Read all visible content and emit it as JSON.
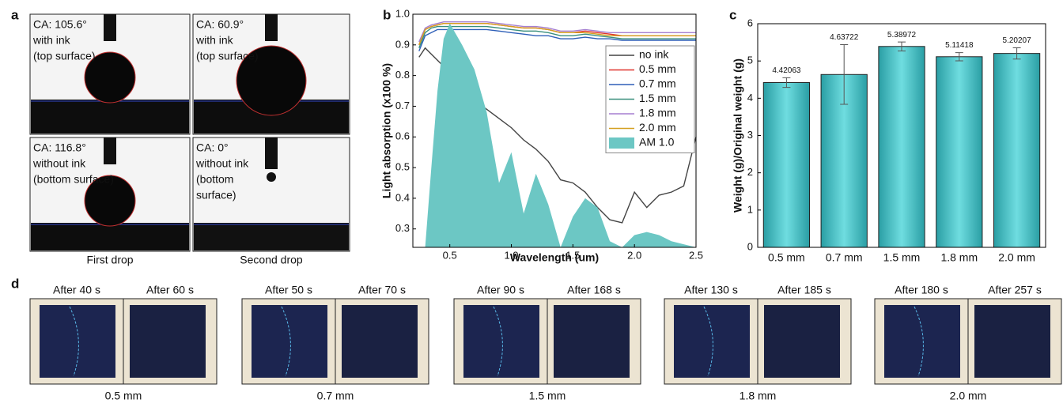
{
  "panels": {
    "a": {
      "letter": "a",
      "images": [
        {
          "lines": [
            "CA: 105.6°",
            "with ink",
            "(top surface)"
          ]
        },
        {
          "lines": [
            "CA: 60.9°",
            "with ink",
            "(top surface)"
          ]
        },
        {
          "lines": [
            "CA: 116.8°",
            "without ink",
            "(bottom surface)"
          ]
        },
        {
          "lines": [
            "CA: 0°",
            "without ink",
            "(bottom",
            "surface)"
          ]
        }
      ],
      "captions": [
        "First drop",
        "Second drop"
      ]
    },
    "d": {
      "letter": "d",
      "groups": [
        {
          "before": "After 40 s",
          "after": "After 60 s",
          "label": "0.5 mm"
        },
        {
          "before": "After 50 s",
          "after": "After 70 s",
          "label": "0.7 mm"
        },
        {
          "before": "After 90 s",
          "after": "After 168 s",
          "label": "1.5 mm"
        },
        {
          "before": "After 130 s",
          "after": "After 185 s",
          "label": "1.8 mm"
        },
        {
          "before": "After 180 s",
          "after": "After 257 s",
          "label": "2.0 mm"
        }
      ]
    }
  },
  "chart_data": [
    {
      "type": "line",
      "panel": "b",
      "xlabel": "Wavelength (um)",
      "ylabel": "Light absorption (x100 %)",
      "x": [
        0.25,
        0.3,
        0.35,
        0.4,
        0.45,
        0.5,
        0.6,
        0.7,
        0.8,
        0.9,
        1.0,
        1.1,
        1.2,
        1.3,
        1.4,
        1.5,
        1.6,
        1.7,
        1.8,
        1.9,
        2.0,
        2.1,
        2.2,
        2.3,
        2.4,
        2.5
      ],
      "xlim": [
        0.2,
        2.5
      ],
      "ylim": [
        0.24,
        1.0
      ],
      "xticks": [
        0.5,
        {
          "value": 1,
          "label": "1.0"
        },
        1.5,
        {
          "value": 2,
          "label": "2.0"
        },
        2.5
      ],
      "yticks": [
        0.3,
        0.4,
        0.5,
        0.6,
        0.7,
        0.8,
        0.9,
        {
          "value": 1,
          "label": "1.0"
        }
      ],
      "series": [
        {
          "name": "no ink",
          "color": "#444444",
          "values": [
            0.86,
            0.89,
            0.87,
            0.85,
            0.83,
            0.8,
            0.75,
            0.72,
            0.69,
            0.66,
            0.63,
            0.59,
            0.56,
            0.52,
            0.46,
            0.45,
            0.42,
            0.37,
            0.33,
            0.32,
            0.42,
            0.37,
            0.41,
            0.42,
            0.44,
            0.6
          ]
        },
        {
          "name": "0.5 mm",
          "color": "#e0322b",
          "values": [
            0.9,
            0.95,
            0.96,
            0.965,
            0.97,
            0.97,
            0.97,
            0.97,
            0.97,
            0.965,
            0.96,
            0.955,
            0.955,
            0.95,
            0.94,
            0.94,
            0.945,
            0.94,
            0.935,
            0.93,
            0.93,
            0.93,
            0.93,
            0.93,
            0.93,
            0.93
          ]
        },
        {
          "name": "0.7 mm",
          "color": "#2e5fb8",
          "values": [
            0.88,
            0.93,
            0.94,
            0.95,
            0.95,
            0.95,
            0.95,
            0.95,
            0.95,
            0.945,
            0.94,
            0.935,
            0.93,
            0.93,
            0.92,
            0.92,
            0.925,
            0.92,
            0.92,
            0.915,
            0.915,
            0.915,
            0.915,
            0.915,
            0.915,
            0.915
          ]
        },
        {
          "name": "1.5 mm",
          "color": "#3a8f7d",
          "values": [
            0.89,
            0.94,
            0.955,
            0.96,
            0.96,
            0.96,
            0.96,
            0.96,
            0.96,
            0.955,
            0.95,
            0.945,
            0.945,
            0.94,
            0.93,
            0.93,
            0.935,
            0.93,
            0.925,
            0.92,
            0.92,
            0.92,
            0.92,
            0.92,
            0.92,
            0.92
          ]
        },
        {
          "name": "1.8 mm",
          "color": "#a57fd0",
          "values": [
            0.91,
            0.955,
            0.965,
            0.97,
            0.975,
            0.975,
            0.975,
            0.975,
            0.975,
            0.97,
            0.965,
            0.96,
            0.96,
            0.955,
            0.945,
            0.945,
            0.95,
            0.945,
            0.94,
            0.94,
            0.94,
            0.94,
            0.94,
            0.94,
            0.94,
            0.94
          ]
        },
        {
          "name": "2.0 mm",
          "color": "#d4a020",
          "values": [
            0.9,
            0.95,
            0.96,
            0.965,
            0.97,
            0.97,
            0.97,
            0.97,
            0.97,
            0.965,
            0.96,
            0.955,
            0.955,
            0.95,
            0.94,
            0.94,
            0.94,
            0.935,
            0.93,
            0.93,
            0.93,
            0.93,
            0.93,
            0.93,
            0.93,
            0.93
          ]
        },
        {
          "name": "AM 1.0",
          "color": "#6cc7c4",
          "kind": "area",
          "values": [
            0.24,
            0.24,
            0.5,
            0.75,
            0.92,
            0.97,
            0.9,
            0.82,
            0.68,
            0.45,
            0.55,
            0.35,
            0.48,
            0.38,
            0.24,
            0.34,
            0.4,
            0.37,
            0.26,
            0.24,
            0.28,
            0.29,
            0.28,
            0.26,
            0.25,
            0.24
          ]
        }
      ]
    },
    {
      "type": "bar",
      "panel": "c",
      "ylabel": "Weight (g)/Original weight (g)",
      "categories": [
        "0.5 mm",
        "0.7 mm",
        "1.5 mm",
        "1.8 mm",
        "2.0 mm"
      ],
      "values": [
        4.42063,
        4.63722,
        5.38972,
        5.11418,
        5.20207
      ],
      "errors": [
        0.13,
        0.8,
        0.12,
        0.11,
        0.15
      ],
      "color": "#5cd0d4",
      "ylim": [
        0,
        6
      ],
      "yticks": [
        0,
        1,
        2,
        3,
        4,
        5,
        6
      ]
    }
  ]
}
